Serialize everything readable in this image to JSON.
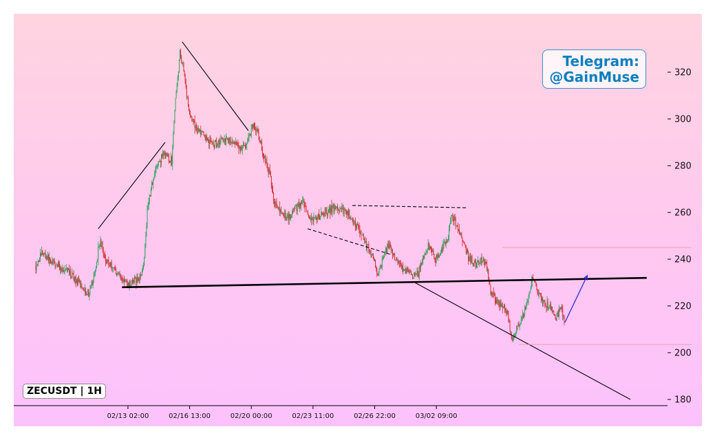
{
  "chart_data": {
    "type": "candlestick",
    "symbol_label": "ZECUSDT | 1H",
    "watermark": {
      "line1": "Telegram:",
      "line2": "@GainMuse"
    },
    "y_axis": {
      "position": "right",
      "ylim": [
        176,
        340
      ],
      "ticks": [
        180,
        200,
        220,
        240,
        260,
        280,
        300,
        320
      ]
    },
    "x_axis": {
      "ticks": [
        "02/13 02:00",
        "02/16 13:00",
        "02/20 00:00",
        "02/23 11:00",
        "02/26 22:00",
        "03/02 09:00"
      ]
    },
    "colors": {
      "up": "#2ca05a",
      "down": "#d62728",
      "trendline": "#000000",
      "target_arrow": "#3030d0",
      "level_line": "#e8a0a8"
    },
    "price_path": [
      [
        0,
        237
      ],
      [
        8,
        243
      ],
      [
        25,
        238
      ],
      [
        45,
        234
      ],
      [
        60,
        229
      ],
      [
        72,
        225
      ],
      [
        80,
        235
      ],
      [
        86,
        248
      ],
      [
        92,
        241
      ],
      [
        105,
        236
      ],
      [
        118,
        231
      ],
      [
        124,
        229
      ],
      [
        140,
        232
      ],
      [
        146,
        240
      ],
      [
        150,
        262
      ],
      [
        160,
        278
      ],
      [
        172,
        285
      ],
      [
        183,
        282
      ],
      [
        186,
        300
      ],
      [
        190,
        315
      ],
      [
        194,
        328
      ],
      [
        199,
        322
      ],
      [
        205,
        305
      ],
      [
        212,
        298
      ],
      [
        225,
        293
      ],
      [
        240,
        289
      ],
      [
        255,
        292
      ],
      [
        268,
        289
      ],
      [
        278,
        287
      ],
      [
        286,
        291
      ],
      [
        292,
        298
      ],
      [
        300,
        293
      ],
      [
        306,
        285
      ],
      [
        315,
        276
      ],
      [
        320,
        266
      ],
      [
        328,
        260
      ],
      [
        340,
        258
      ],
      [
        350,
        262
      ],
      [
        360,
        264
      ],
      [
        368,
        256
      ],
      [
        375,
        257
      ],
      [
        385,
        259
      ],
      [
        400,
        262
      ],
      [
        420,
        260
      ],
      [
        430,
        255
      ],
      [
        440,
        250
      ],
      [
        448,
        244
      ],
      [
        455,
        240
      ],
      [
        460,
        232
      ],
      [
        468,
        242
      ],
      [
        476,
        246
      ],
      [
        482,
        241
      ],
      [
        492,
        237
      ],
      [
        505,
        233
      ],
      [
        515,
        234
      ],
      [
        520,
        240
      ],
      [
        528,
        246
      ],
      [
        538,
        240
      ],
      [
        547,
        245
      ],
      [
        555,
        250
      ],
      [
        560,
        259
      ],
      [
        568,
        253
      ],
      [
        576,
        247
      ],
      [
        582,
        241
      ],
      [
        592,
        238
      ],
      [
        600,
        240
      ],
      [
        606,
        239
      ],
      [
        612,
        226
      ],
      [
        620,
        222
      ],
      [
        630,
        219
      ],
      [
        635,
        216
      ],
      [
        640,
        206
      ],
      [
        650,
        212
      ],
      [
        660,
        220
      ],
      [
        668,
        232
      ],
      [
        675,
        226
      ],
      [
        684,
        221
      ],
      [
        694,
        219
      ],
      [
        700,
        215
      ],
      [
        707,
        219
      ],
      [
        711,
        214
      ]
    ],
    "annotations": [
      {
        "kind": "trendline",
        "style": "solid",
        "from": {
          "bar": 84,
          "price": 253
        },
        "to": {
          "bar": 174,
          "price": 290
        }
      },
      {
        "kind": "trendline",
        "style": "solid",
        "from": {
          "bar": 197,
          "price": 333
        },
        "to": {
          "bar": 286,
          "price": 295
        }
      },
      {
        "kind": "trendline",
        "style": "dashed",
        "from": {
          "bar": 366,
          "price": 253
        },
        "to": {
          "bar": 478,
          "price": 242
        }
      },
      {
        "kind": "trendline",
        "style": "dashed",
        "from": {
          "bar": 426,
          "price": 263
        },
        "to": {
          "bar": 579,
          "price": 262
        }
      },
      {
        "kind": "support",
        "style": "thick",
        "from": {
          "bar": 116,
          "price": 228
        },
        "to": {
          "bar": 822,
          "price": 232
        }
      },
      {
        "kind": "trendline",
        "style": "solid",
        "from": {
          "bar": 510,
          "price": 230
        },
        "to": {
          "bar": 800,
          "price": 180
        }
      },
      {
        "kind": "level",
        "style": "thin",
        "price": 245,
        "from_bar": 628,
        "to_bar": 882
      },
      {
        "kind": "level",
        "style": "thin",
        "price": 203.5,
        "from_bar": 650,
        "to_bar": 882
      },
      {
        "kind": "arrow",
        "from": {
          "bar": 712,
          "price": 213
        },
        "to": {
          "bar": 742,
          "price": 233
        }
      }
    ]
  }
}
